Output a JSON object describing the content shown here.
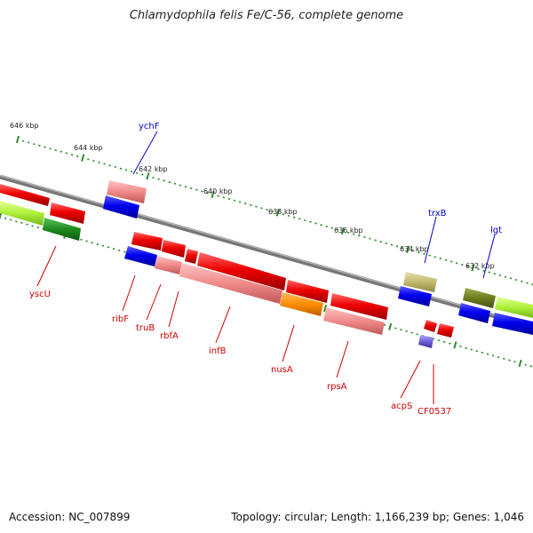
{
  "title": "Chlamydophila felis Fe/C-56, complete genome",
  "accession": "Accession: NC_007899",
  "summary": "Topology: circular; Length: 1,166,239 bp; Genes: 1,046",
  "colors": {
    "backbone": "#7a7a7a",
    "tick": "#2e8b2e",
    "label_red": "#cc0000",
    "label_blue": "#0000cc"
  },
  "ticks": [
    {
      "label": "646 kbp"
    },
    {
      "label": "644 kbp"
    },
    {
      "label": "642 kbp"
    },
    {
      "label": "640 kbp"
    },
    {
      "label": "638 kbp"
    },
    {
      "label": "636 kbp"
    },
    {
      "label": "634 kbp"
    },
    {
      "label": "632 kbp"
    }
  ],
  "genes": [
    {
      "name": "yscU",
      "color": "#cc0000"
    },
    {
      "name": "ychF",
      "color": "#0000cc"
    },
    {
      "name": "ribF",
      "color": "#cc0000"
    },
    {
      "name": "truB",
      "color": "#cc0000"
    },
    {
      "name": "rbfA",
      "color": "#cc0000"
    },
    {
      "name": "infB",
      "color": "#cc0000"
    },
    {
      "name": "nusA",
      "color": "#cc0000"
    },
    {
      "name": "rpsA",
      "color": "#cc0000"
    },
    {
      "name": "trxB",
      "color": "#0000cc"
    },
    {
      "name": "lgt",
      "color": "#0000cc"
    },
    {
      "name": "acpS",
      "color": "#cc0000"
    },
    {
      "name": "CF0537",
      "color": "#cc0000"
    }
  ]
}
